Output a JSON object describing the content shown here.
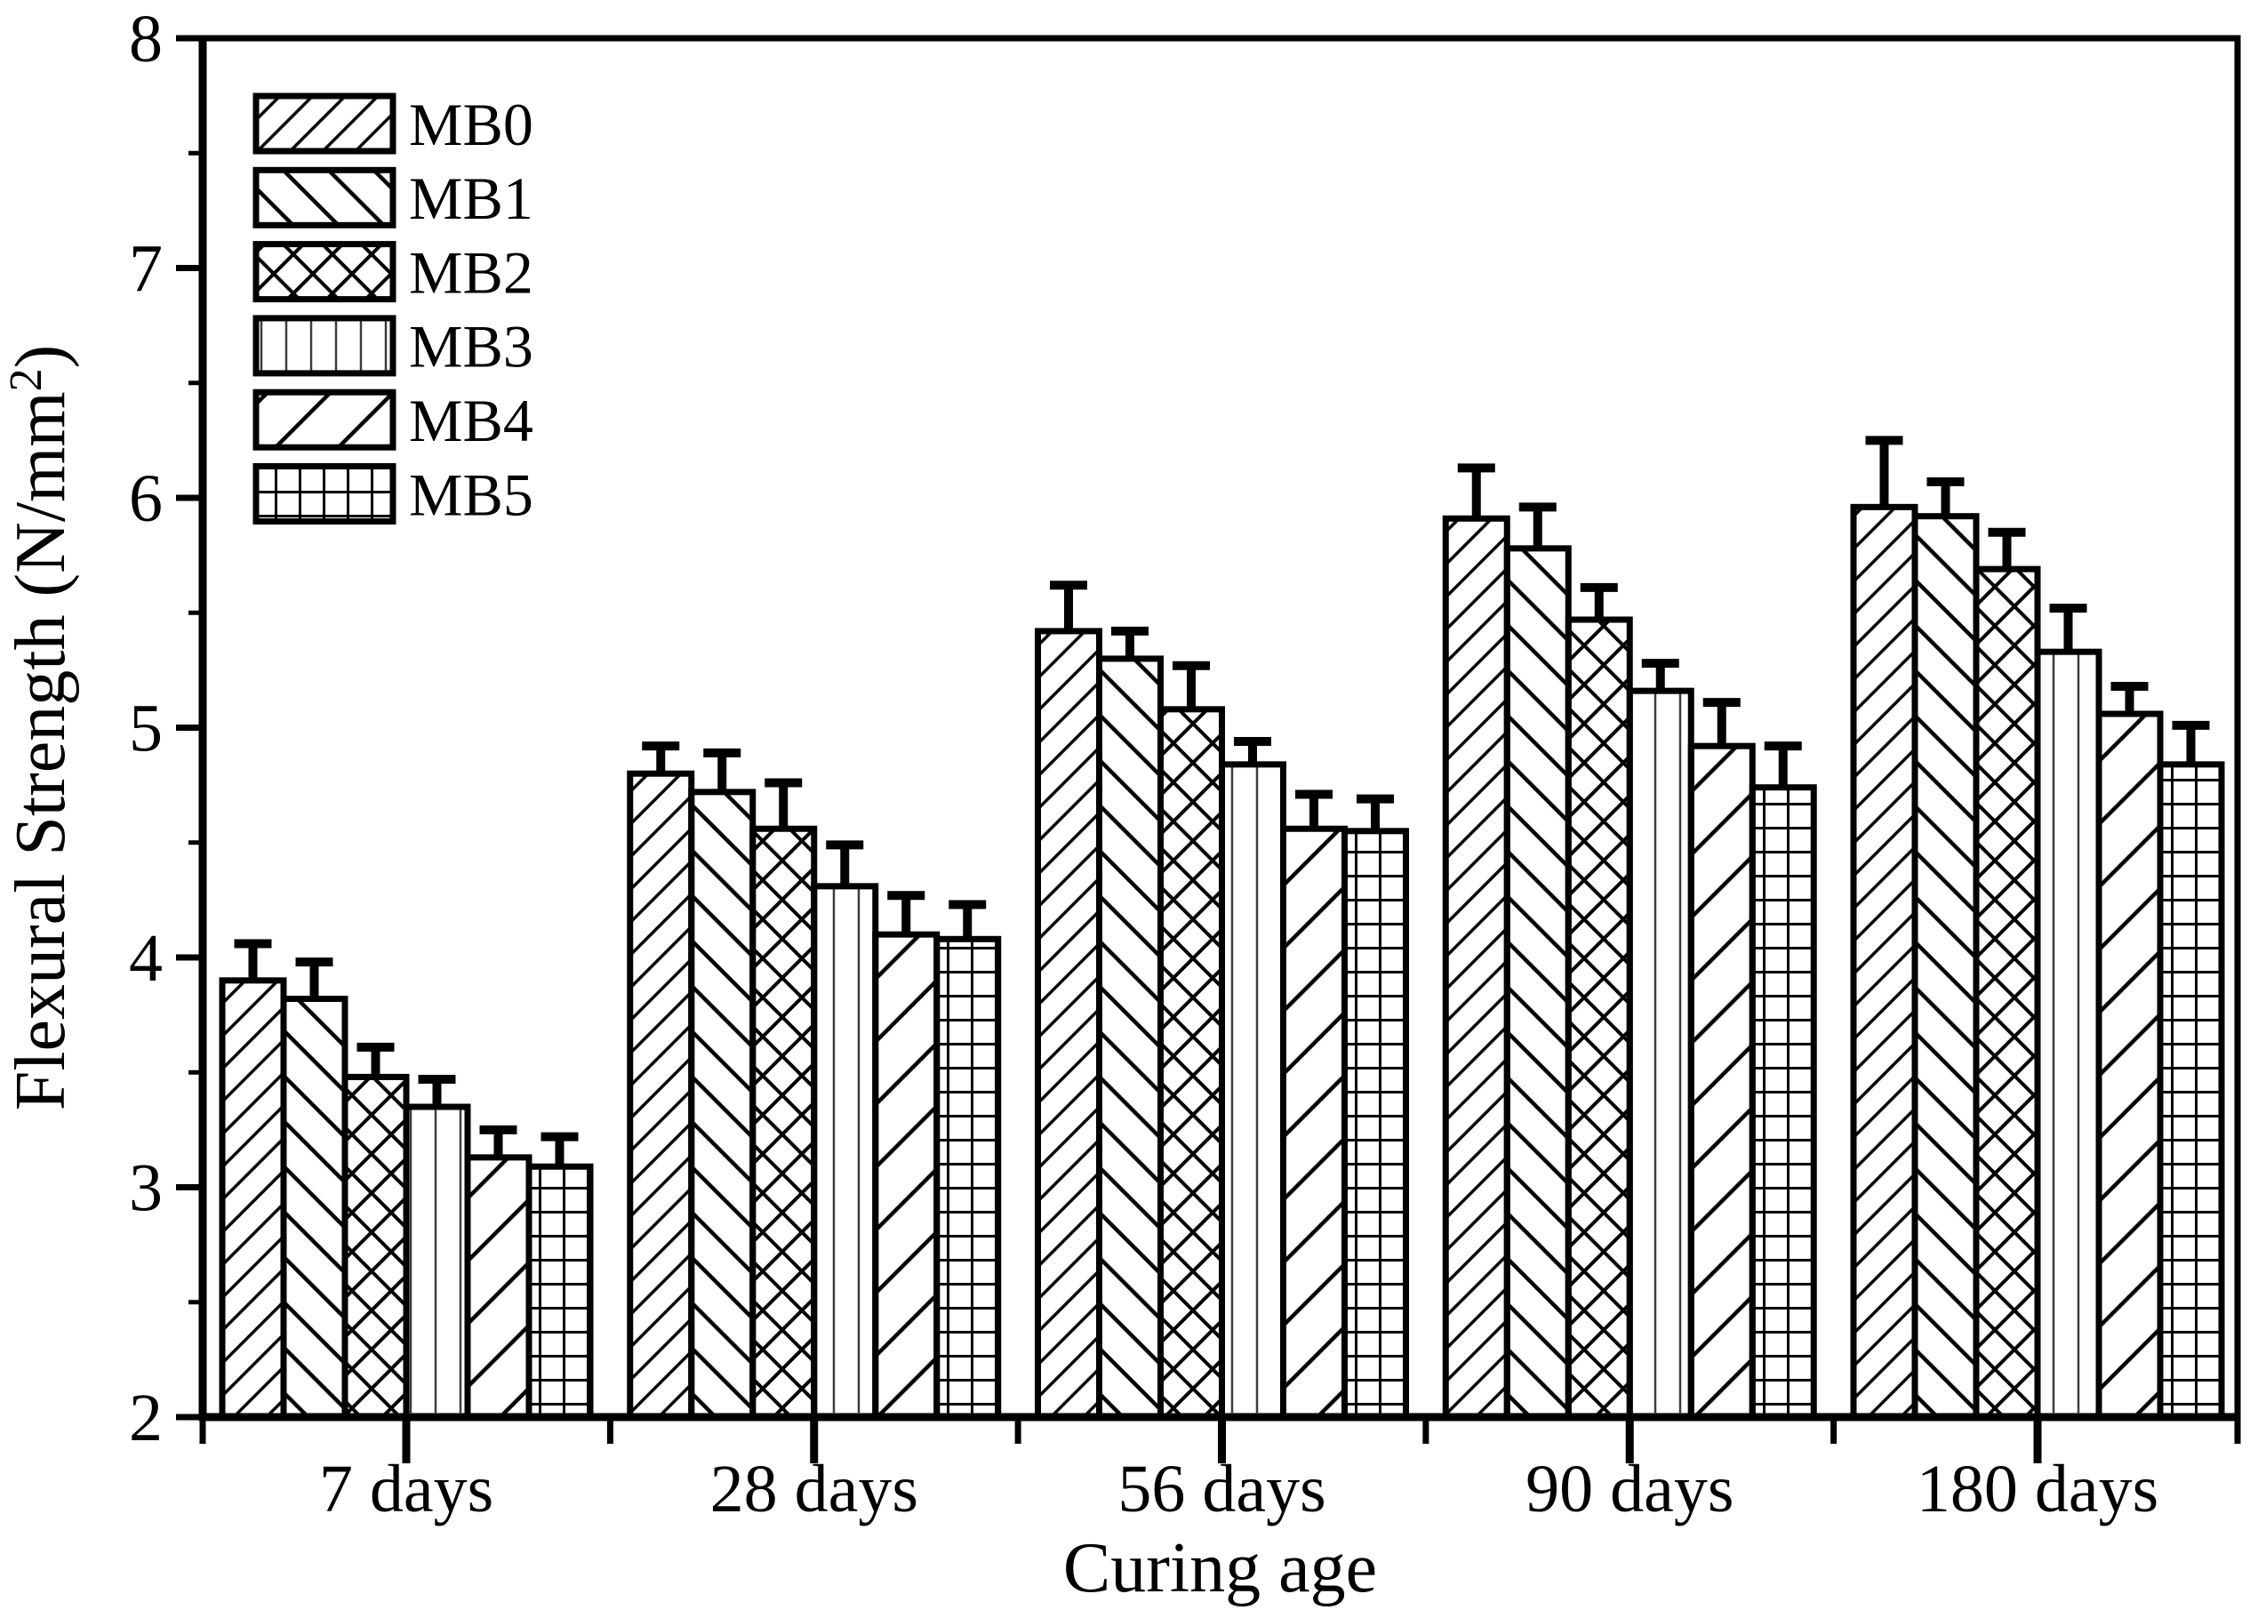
{
  "figure": {
    "background": "#ffffff",
    "ink_color": "#000000",
    "mb3_line_color": "#3d3d3d"
  },
  "chart_data": {
    "type": "bar",
    "title": "",
    "xlabel": "Curing age",
    "ylabel": "Flexural Strength (N/mm²)",
    "ylabel_parts": {
      "main": "Flexural Strength (N/mm",
      "sup": "2",
      "close": ")"
    },
    "ylim": [
      2,
      8
    ],
    "yticks": [
      2,
      3,
      4,
      5,
      6,
      7,
      8
    ],
    "yminorticks": [
      2.5,
      3.5,
      4.5,
      5.5,
      6.5,
      7.5
    ],
    "grid": false,
    "legend_position": "top-left",
    "error_bars": "upper-only",
    "categories": [
      "7 days",
      "28 days",
      "56 days",
      "90 days",
      "180 days"
    ],
    "series": [
      {
        "name": "MB0",
        "pattern": "diagonal-forward-dense",
        "values": [
          3.9,
          4.8,
          5.42,
          5.91,
          5.96
        ],
        "errors": [
          0.16,
          0.12,
          0.2,
          0.22,
          0.29
        ]
      },
      {
        "name": "MB1",
        "pattern": "diagonal-back",
        "values": [
          3.82,
          4.72,
          5.3,
          5.78,
          5.92
        ],
        "errors": [
          0.16,
          0.17,
          0.12,
          0.18,
          0.15
        ]
      },
      {
        "name": "MB2",
        "pattern": "crosshatch",
        "values": [
          3.48,
          4.56,
          5.08,
          5.47,
          5.69
        ],
        "errors": [
          0.13,
          0.2,
          0.19,
          0.14,
          0.16
        ]
      },
      {
        "name": "MB3",
        "pattern": "vertical-lines",
        "values": [
          3.35,
          4.31,
          4.84,
          5.16,
          5.33
        ],
        "errors": [
          0.12,
          0.18,
          0.1,
          0.12,
          0.19
        ]
      },
      {
        "name": "MB4",
        "pattern": "diagonal-forward-sparse",
        "values": [
          3.13,
          4.1,
          4.56,
          4.92,
          5.06
        ],
        "errors": [
          0.12,
          0.17,
          0.15,
          0.19,
          0.12
        ]
      },
      {
        "name": "MB5",
        "pattern": "grid",
        "values": [
          3.09,
          4.08,
          4.55,
          4.74,
          4.84
        ],
        "errors": [
          0.13,
          0.15,
          0.14,
          0.18,
          0.17
        ]
      }
    ]
  }
}
